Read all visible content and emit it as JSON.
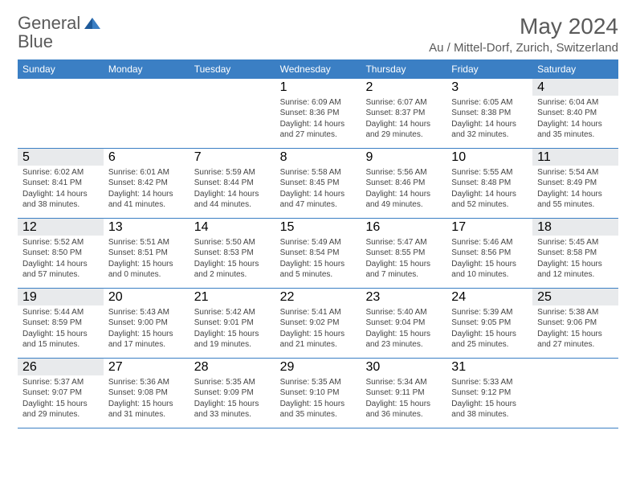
{
  "brand": {
    "part1": "General",
    "part2": "Blue"
  },
  "title": "May 2024",
  "location": "Au / Mittel-Dorf, Zurich, Switzerland",
  "colors": {
    "header_bg": "#3b7fc4",
    "header_text": "#ffffff",
    "shade_bg": "#e8eaec",
    "border": "#3b7fc4",
    "text": "#444444",
    "logo_gray": "#5a5a5a",
    "logo_blue": "#3b7fc4"
  },
  "day_names": [
    "Sunday",
    "Monday",
    "Tuesday",
    "Wednesday",
    "Thursday",
    "Friday",
    "Saturday"
  ],
  "weeks": [
    [
      {
        "num": "",
        "lines": []
      },
      {
        "num": "",
        "lines": []
      },
      {
        "num": "",
        "lines": []
      },
      {
        "num": "1",
        "lines": [
          "Sunrise: 6:09 AM",
          "Sunset: 8:36 PM",
          "Daylight: 14 hours",
          "and 27 minutes."
        ]
      },
      {
        "num": "2",
        "lines": [
          "Sunrise: 6:07 AM",
          "Sunset: 8:37 PM",
          "Daylight: 14 hours",
          "and 29 minutes."
        ]
      },
      {
        "num": "3",
        "lines": [
          "Sunrise: 6:05 AM",
          "Sunset: 8:38 PM",
          "Daylight: 14 hours",
          "and 32 minutes."
        ]
      },
      {
        "num": "4",
        "shade": true,
        "lines": [
          "Sunrise: 6:04 AM",
          "Sunset: 8:40 PM",
          "Daylight: 14 hours",
          "and 35 minutes."
        ]
      }
    ],
    [
      {
        "num": "5",
        "shade": true,
        "lines": [
          "Sunrise: 6:02 AM",
          "Sunset: 8:41 PM",
          "Daylight: 14 hours",
          "and 38 minutes."
        ]
      },
      {
        "num": "6",
        "lines": [
          "Sunrise: 6:01 AM",
          "Sunset: 8:42 PM",
          "Daylight: 14 hours",
          "and 41 minutes."
        ]
      },
      {
        "num": "7",
        "lines": [
          "Sunrise: 5:59 AM",
          "Sunset: 8:44 PM",
          "Daylight: 14 hours",
          "and 44 minutes."
        ]
      },
      {
        "num": "8",
        "lines": [
          "Sunrise: 5:58 AM",
          "Sunset: 8:45 PM",
          "Daylight: 14 hours",
          "and 47 minutes."
        ]
      },
      {
        "num": "9",
        "lines": [
          "Sunrise: 5:56 AM",
          "Sunset: 8:46 PM",
          "Daylight: 14 hours",
          "and 49 minutes."
        ]
      },
      {
        "num": "10",
        "lines": [
          "Sunrise: 5:55 AM",
          "Sunset: 8:48 PM",
          "Daylight: 14 hours",
          "and 52 minutes."
        ]
      },
      {
        "num": "11",
        "shade": true,
        "lines": [
          "Sunrise: 5:54 AM",
          "Sunset: 8:49 PM",
          "Daylight: 14 hours",
          "and 55 minutes."
        ]
      }
    ],
    [
      {
        "num": "12",
        "shade": true,
        "lines": [
          "Sunrise: 5:52 AM",
          "Sunset: 8:50 PM",
          "Daylight: 14 hours",
          "and 57 minutes."
        ]
      },
      {
        "num": "13",
        "lines": [
          "Sunrise: 5:51 AM",
          "Sunset: 8:51 PM",
          "Daylight: 15 hours",
          "and 0 minutes."
        ]
      },
      {
        "num": "14",
        "lines": [
          "Sunrise: 5:50 AM",
          "Sunset: 8:53 PM",
          "Daylight: 15 hours",
          "and 2 minutes."
        ]
      },
      {
        "num": "15",
        "lines": [
          "Sunrise: 5:49 AM",
          "Sunset: 8:54 PM",
          "Daylight: 15 hours",
          "and 5 minutes."
        ]
      },
      {
        "num": "16",
        "lines": [
          "Sunrise: 5:47 AM",
          "Sunset: 8:55 PM",
          "Daylight: 15 hours",
          "and 7 minutes."
        ]
      },
      {
        "num": "17",
        "lines": [
          "Sunrise: 5:46 AM",
          "Sunset: 8:56 PM",
          "Daylight: 15 hours",
          "and 10 minutes."
        ]
      },
      {
        "num": "18",
        "shade": true,
        "lines": [
          "Sunrise: 5:45 AM",
          "Sunset: 8:58 PM",
          "Daylight: 15 hours",
          "and 12 minutes."
        ]
      }
    ],
    [
      {
        "num": "19",
        "shade": true,
        "lines": [
          "Sunrise: 5:44 AM",
          "Sunset: 8:59 PM",
          "Daylight: 15 hours",
          "and 15 minutes."
        ]
      },
      {
        "num": "20",
        "lines": [
          "Sunrise: 5:43 AM",
          "Sunset: 9:00 PM",
          "Daylight: 15 hours",
          "and 17 minutes."
        ]
      },
      {
        "num": "21",
        "lines": [
          "Sunrise: 5:42 AM",
          "Sunset: 9:01 PM",
          "Daylight: 15 hours",
          "and 19 minutes."
        ]
      },
      {
        "num": "22",
        "lines": [
          "Sunrise: 5:41 AM",
          "Sunset: 9:02 PM",
          "Daylight: 15 hours",
          "and 21 minutes."
        ]
      },
      {
        "num": "23",
        "lines": [
          "Sunrise: 5:40 AM",
          "Sunset: 9:04 PM",
          "Daylight: 15 hours",
          "and 23 minutes."
        ]
      },
      {
        "num": "24",
        "lines": [
          "Sunrise: 5:39 AM",
          "Sunset: 9:05 PM",
          "Daylight: 15 hours",
          "and 25 minutes."
        ]
      },
      {
        "num": "25",
        "shade": true,
        "lines": [
          "Sunrise: 5:38 AM",
          "Sunset: 9:06 PM",
          "Daylight: 15 hours",
          "and 27 minutes."
        ]
      }
    ],
    [
      {
        "num": "26",
        "shade": true,
        "lines": [
          "Sunrise: 5:37 AM",
          "Sunset: 9:07 PM",
          "Daylight: 15 hours",
          "and 29 minutes."
        ]
      },
      {
        "num": "27",
        "lines": [
          "Sunrise: 5:36 AM",
          "Sunset: 9:08 PM",
          "Daylight: 15 hours",
          "and 31 minutes."
        ]
      },
      {
        "num": "28",
        "lines": [
          "Sunrise: 5:35 AM",
          "Sunset: 9:09 PM",
          "Daylight: 15 hours",
          "and 33 minutes."
        ]
      },
      {
        "num": "29",
        "lines": [
          "Sunrise: 5:35 AM",
          "Sunset: 9:10 PM",
          "Daylight: 15 hours",
          "and 35 minutes."
        ]
      },
      {
        "num": "30",
        "lines": [
          "Sunrise: 5:34 AM",
          "Sunset: 9:11 PM",
          "Daylight: 15 hours",
          "and 36 minutes."
        ]
      },
      {
        "num": "31",
        "lines": [
          "Sunrise: 5:33 AM",
          "Sunset: 9:12 PM",
          "Daylight: 15 hours",
          "and 38 minutes."
        ]
      },
      {
        "num": "",
        "lines": []
      }
    ]
  ]
}
